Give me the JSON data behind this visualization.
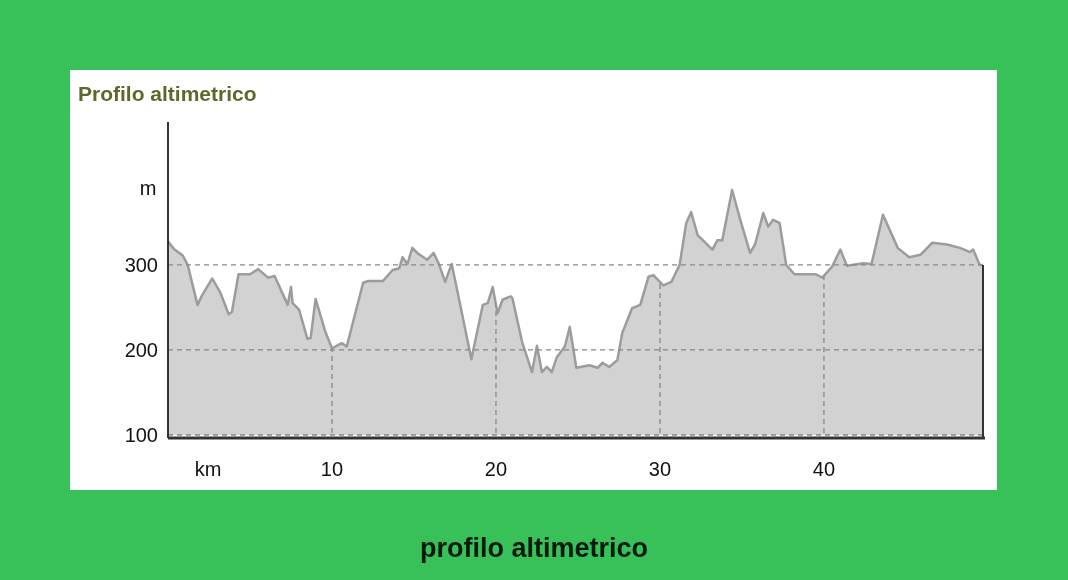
{
  "chart_data": {
    "type": "area",
    "title": "Profilo altimetrico",
    "xlabel": "km",
    "ylabel": "m",
    "annotations": [
      "profilo altimetrico"
    ],
    "x": [
      0,
      0.1,
      0.4,
      0.9,
      1.2,
      1.8,
      2.1,
      2.7,
      3.2,
      3.7,
      3.9,
      4.3,
      5.0,
      5.5,
      6.1,
      6.5,
      7.3,
      7.5,
      7.6,
      8.0,
      8.5,
      8.7,
      9.0,
      9.6,
      10.0,
      10.6,
      10.9,
      11.9,
      12.2,
      13.1,
      13.7,
      14.1,
      14.3,
      14.6,
      14.9,
      15.2,
      15.8,
      16.2,
      16.5,
      16.9,
      17.3,
      17.8,
      18.5,
      19.2,
      19.5,
      19.8,
      20.1,
      20.4,
      20.9,
      21.0,
      21.6,
      22.2,
      22.5,
      22.8,
      23.1,
      23.4,
      23.7,
      24.2,
      24.5,
      24.9,
      25.7,
      26.2,
      26.5,
      26.9,
      27.4,
      27.7,
      28.3,
      28.8,
      29.3,
      29.6,
      30.2,
      30.7,
      31.2,
      31.6,
      31.9,
      32.3,
      33.2,
      33.5,
      33.8,
      34.4,
      34.9,
      35.5,
      35.8,
      36.3,
      36.6,
      36.9,
      37.3,
      37.7,
      38.2,
      39.5,
      39.9,
      40.5,
      41.0,
      41.4,
      42.4,
      42.9,
      43.6,
      44.5,
      45.2,
      45.9,
      46.6,
      47.5,
      48.3,
      48.9,
      49.1,
      49.5,
      49.7
    ],
    "series": [
      {
        "color": "#9c9c9c",
        "values": [
          328,
          325,
          318,
          311,
          300,
          253,
          265,
          284,
          267,
          242,
          245,
          289,
          289,
          295,
          285,
          287,
          253,
          274,
          255,
          247,
          213,
          214,
          260,
          221,
          202,
          208,
          204,
          279,
          281,
          281,
          294,
          296,
          309,
          301,
          320,
          314,
          306,
          314,
          302,
          280,
          301,
          255,
          189,
          253,
          255,
          274,
          243,
          259,
          263,
          261,
          209,
          174,
          205,
          174,
          180,
          174,
          191,
          204,
          227,
          179,
          182,
          179,
          185,
          180,
          188,
          220,
          249,
          253,
          286,
          288,
          276,
          280,
          300,
          349,
          362,
          335,
          318,
          329,
          329,
          388,
          353,
          314,
          324,
          361,
          345,
          353,
          349,
          300,
          289,
          289,
          285,
          298,
          318,
          299,
          302,
          301,
          359,
          320,
          309,
          312,
          326,
          324,
          320,
          315,
          318,
          300,
          300
        ]
      }
    ],
    "xlim": [
      0,
      49.7
    ],
    "ylim": [
      100,
      468
    ],
    "xticks": [
      10,
      20,
      30,
      40
    ],
    "yticks": [
      100,
      200,
      300
    ],
    "grid": true
  }
}
